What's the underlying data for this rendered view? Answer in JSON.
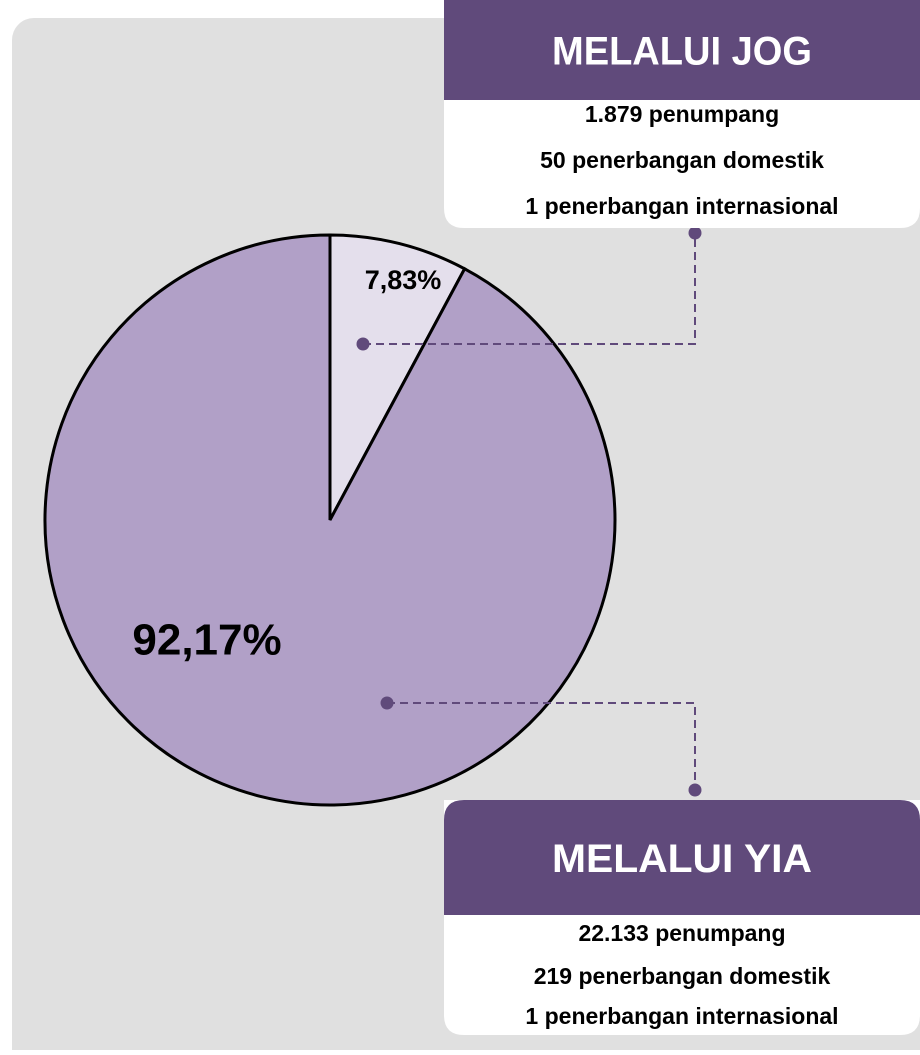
{
  "chart_data": {
    "type": "pie",
    "categories": [
      "MELALUI JOG",
      "MELALUI YIA"
    ],
    "values": [
      7.83,
      92.17
    ],
    "value_labels": [
      "7,83%",
      "92,17%"
    ],
    "colors": [
      "#e4dfec",
      "#b1a0c7"
    ],
    "details": [
      [
        "1.879 penumpang",
        "50 penerbangan domestik",
        "1 penerbangan internasional"
      ],
      [
        "22.133 penumpang",
        "219 penerbangan domestik",
        "1 penerbangan internasional"
      ]
    ]
  }
}
